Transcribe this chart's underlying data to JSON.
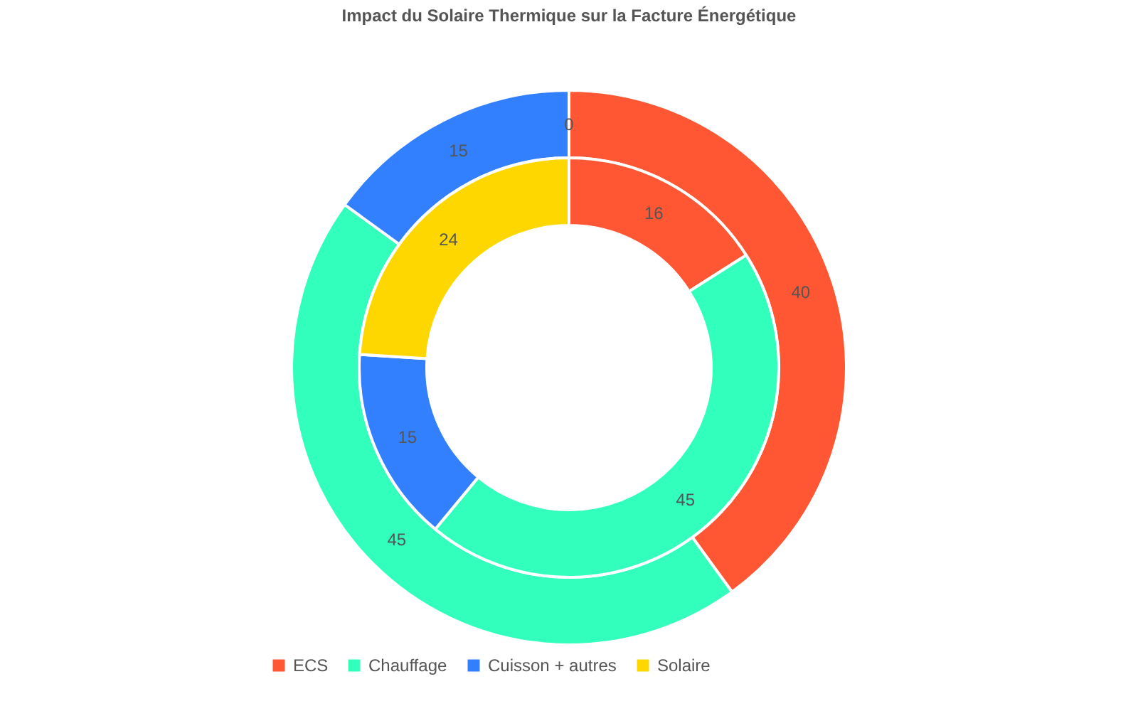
{
  "chart_data": {
    "type": "donut",
    "title": "Impact du Solaire Thermique sur la Facture Énergétique",
    "categories": [
      "ECS",
      "Chauffage",
      "Cuisson + autres",
      "Solaire"
    ],
    "colors": [
      "#ff5733",
      "#33ffbd",
      "#3380ff",
      "#ffd700"
    ],
    "series": [
      {
        "values": [
          40,
          45,
          15,
          0
        ],
        "value_labels": [
          "40",
          "45",
          "15",
          "0"
        ]
      },
      {
        "values": [
          16,
          45,
          15,
          24
        ],
        "value_labels": [
          "16",
          "45",
          "15",
          "24"
        ]
      }
    ],
    "legend": "bottom"
  }
}
